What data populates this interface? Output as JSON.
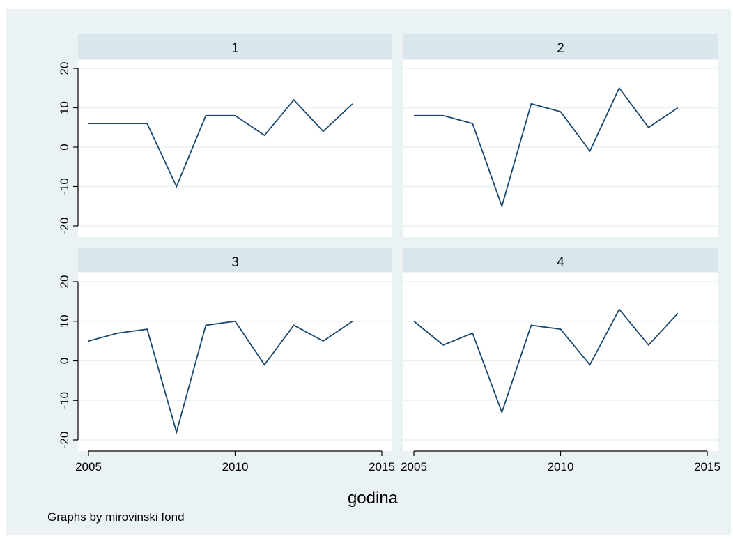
{
  "colors": {
    "background": "#eaf2f3",
    "plot_area": "#ffffff",
    "panel_header": "#d9e6eb",
    "line": "#1a476f",
    "grid": "#eaf2f3"
  },
  "note": "Graphs by mirovinski fond",
  "chart_data": [
    {
      "type": "line",
      "title": "1",
      "x": [
        2005,
        2006,
        2007,
        2008,
        2009,
        2010,
        2011,
        2012,
        2013,
        2014
      ],
      "values": [
        6,
        6,
        6,
        -10,
        8,
        8,
        3,
        12,
        4,
        11
      ]
    },
    {
      "type": "line",
      "title": "2",
      "x": [
        2005,
        2006,
        2007,
        2008,
        2009,
        2010,
        2011,
        2012,
        2013,
        2014
      ],
      "values": [
        8,
        8,
        6,
        -15,
        11,
        9,
        -1,
        15,
        5,
        10
      ]
    },
    {
      "type": "line",
      "title": "3",
      "x": [
        2005,
        2006,
        2007,
        2008,
        2009,
        2010,
        2011,
        2012,
        2013,
        2014
      ],
      "values": [
        5,
        7,
        8,
        -18,
        9,
        10,
        -1,
        9,
        5,
        10
      ]
    },
    {
      "type": "line",
      "title": "4",
      "x": [
        2005,
        2006,
        2007,
        2008,
        2009,
        2010,
        2011,
        2012,
        2013,
        2014
      ],
      "values": [
        10,
        4,
        7,
        -13,
        9,
        8,
        -1,
        13,
        4,
        12
      ]
    }
  ],
  "axes": {
    "xlabel": "godina",
    "xlim": [
      2005,
      2015
    ],
    "ylim": [
      -20,
      20
    ],
    "x_ticks": [
      2005,
      2010,
      2015
    ],
    "y_ticks": [
      -20,
      -10,
      0,
      10,
      20
    ],
    "x_tick_labels": [
      "2005",
      "2010",
      "2015"
    ],
    "y_tick_labels": [
      "-20",
      "-10",
      "0",
      "10",
      "20"
    ],
    "grid": true
  }
}
